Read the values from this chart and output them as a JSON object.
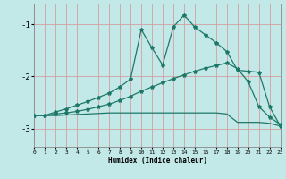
{
  "xlabel": "Humidex (Indice chaleur)",
  "bg_color": "#c2e8e8",
  "red_grid_color": "#d4a0a0",
  "line_color": "#1e7868",
  "xlim": [
    0,
    23
  ],
  "ylim": [
    -3.35,
    -0.6
  ],
  "yticks": [
    -3,
    -2,
    -1
  ],
  "xticks": [
    0,
    1,
    2,
    3,
    4,
    5,
    6,
    7,
    8,
    9,
    10,
    11,
    12,
    13,
    14,
    15,
    16,
    17,
    18,
    19,
    20,
    21,
    22,
    23
  ],
  "line1_x": [
    0,
    1,
    2,
    3,
    4,
    5,
    6,
    7,
    8,
    9,
    10,
    11,
    12,
    13,
    14,
    15,
    16,
    17,
    18,
    19,
    20,
    21,
    22,
    23
  ],
  "line1_y": [
    -2.75,
    -2.75,
    -2.68,
    -2.62,
    -2.55,
    -2.48,
    -2.4,
    -2.32,
    -2.2,
    -2.05,
    -1.1,
    -1.45,
    -1.78,
    -1.05,
    -0.82,
    -1.05,
    -1.2,
    -1.35,
    -1.52,
    -1.88,
    -1.9,
    -1.92,
    -2.58,
    -2.95
  ],
  "line2_x": [
    0,
    1,
    2,
    3,
    4,
    5,
    6,
    7,
    8,
    9,
    10,
    11,
    12,
    13,
    14,
    15,
    16,
    17,
    18,
    19,
    20,
    21,
    22,
    23
  ],
  "line2_y": [
    -2.75,
    -2.75,
    -2.72,
    -2.7,
    -2.67,
    -2.63,
    -2.58,
    -2.53,
    -2.46,
    -2.38,
    -2.28,
    -2.2,
    -2.12,
    -2.04,
    -1.97,
    -1.9,
    -1.84,
    -1.79,
    -1.74,
    -1.85,
    -2.1,
    -2.58,
    -2.78,
    -2.92
  ],
  "line3_x": [
    0,
    1,
    2,
    3,
    4,
    5,
    6,
    7,
    8,
    9,
    10,
    11,
    12,
    13,
    14,
    15,
    16,
    17,
    18,
    19,
    20,
    21,
    22,
    23
  ],
  "line3_y": [
    -2.75,
    -2.75,
    -2.75,
    -2.74,
    -2.73,
    -2.72,
    -2.71,
    -2.7,
    -2.7,
    -2.7,
    -2.7,
    -2.7,
    -2.7,
    -2.7,
    -2.7,
    -2.7,
    -2.7,
    -2.7,
    -2.72,
    -2.88,
    -2.88,
    -2.88,
    -2.9,
    -2.95
  ]
}
